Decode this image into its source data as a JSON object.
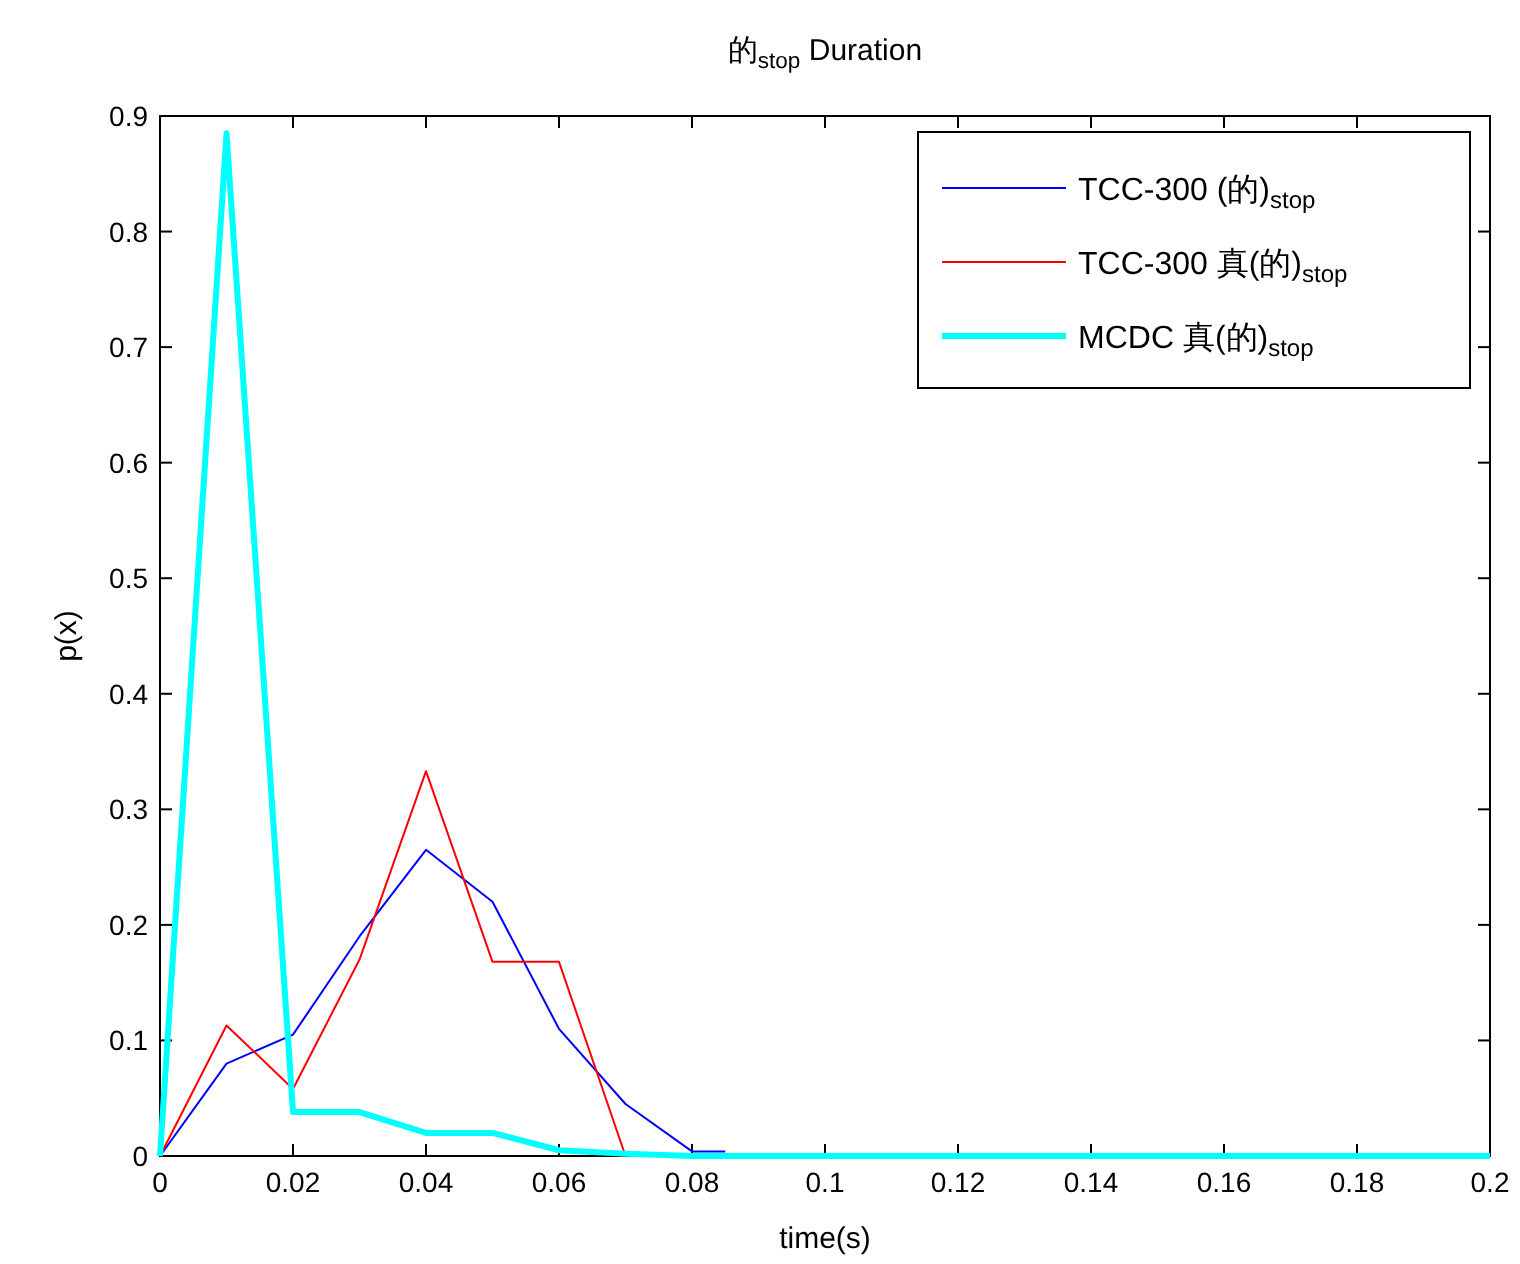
{
  "chart_data": {
    "type": "line",
    "title": "的$_{stop}$ Duration",
    "xlabel": "time(s)",
    "ylabel": "p(x)",
    "xlim": [
      0,
      0.2
    ],
    "xticks": [
      0,
      0.02,
      0.04,
      0.06,
      0.08,
      0.1,
      0.12,
      0.14,
      0.16,
      0.18,
      0.2
    ],
    "ylim": [
      0,
      0.9
    ],
    "yticks": [
      0,
      0.1,
      0.2,
      0.3,
      0.4,
      0.5,
      0.6,
      0.7,
      0.8,
      0.9
    ],
    "grid": false,
    "legend": "top right",
    "line_style": "solid",
    "series": [
      {
        "name": "TCC-300 (的)$_{stop}$",
        "color": "#0000ff",
        "x": [
          0,
          0.01,
          0.02,
          0.03,
          0.04,
          0.05,
          0.06,
          0.07,
          0.08,
          0.085
        ],
        "values": [
          0,
          0.08,
          0.105,
          0.19,
          0.265,
          0.22,
          0.11,
          0.045,
          0.004,
          0.004
        ]
      },
      {
        "name": "TCC-300 真(的)$_{stop}$",
        "color": "#ff0000",
        "x": [
          0,
          0.01,
          0.02,
          0.03,
          0.04,
          0.05,
          0.06,
          0.07
        ],
        "values": [
          0,
          0.113,
          0.058,
          0.17,
          0.333,
          0.168,
          0.168,
          0
        ]
      },
      {
        "name": "MCDC 真(的)$_{stop}$",
        "color": "#00ffff",
        "x": [
          0,
          0.01,
          0.02,
          0.03,
          0.04,
          0.05,
          0.06,
          0.07,
          0.08,
          0.1,
          0.12,
          0.14,
          0.16,
          0.18,
          0.2
        ],
        "values": [
          0,
          0.885,
          0.038,
          0.038,
          0.02,
          0.02,
          0.005,
          0.002,
          0,
          0,
          0,
          0,
          0,
          0,
          0
        ]
      }
    ]
  }
}
